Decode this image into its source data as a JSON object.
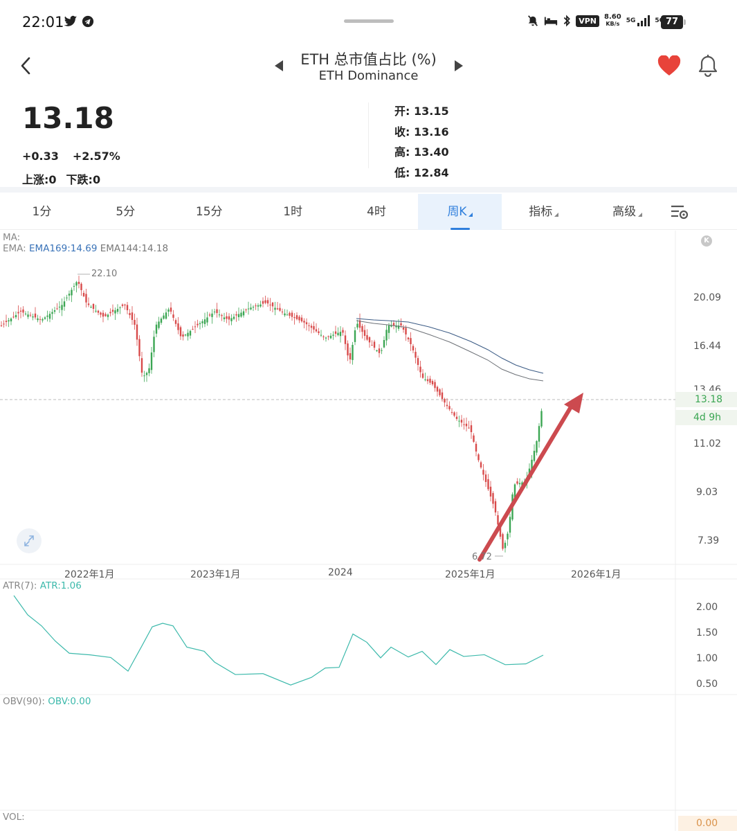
{
  "status_bar": {
    "time": "22:01",
    "net_speed_value": "8.60",
    "net_speed_unit": "KB/s",
    "vpn": "VPN",
    "sim1": "5G",
    "sim2": "5G",
    "battery": "77"
  },
  "header": {
    "title": "ETH 总市值占比 (%)",
    "subtitle": "ETH Dominance"
  },
  "quote": {
    "price": "13.18",
    "change": "+0.33",
    "change_pct": "+2.57%",
    "up_count": "上涨:0",
    "down_count": "下跌:0",
    "open_label": "开:",
    "open": "13.15",
    "close_label": "收:",
    "close": "13.16",
    "high_label": "高:",
    "high": "13.40",
    "low_label": "低:",
    "low": "12.84"
  },
  "tabs": [
    {
      "label": "1分"
    },
    {
      "label": "5分"
    },
    {
      "label": "15分"
    },
    {
      "label": "1时"
    },
    {
      "label": "4时"
    },
    {
      "label": "周K"
    },
    {
      "label": "指标"
    },
    {
      "label": "高级"
    }
  ],
  "indicators": {
    "ma_label": "MA:",
    "ema_label": "EMA:",
    "ema169": "EMA169:14.69",
    "ema144": "EMA144:14.18",
    "atr_label": "ATR(7):",
    "atr_value": "ATR:1.06",
    "obv_label": "OBV(90):",
    "obv_value": "OBV:0.00",
    "vol_label": "VOL:",
    "vol_value": "0.00",
    "k_badge": "K"
  },
  "main_chart": {
    "y_ticks": [
      "20.09",
      "16.44",
      "11.02",
      "9.03",
      "7.39"
    ],
    "y_tick_cut": "13.46",
    "x_ticks": [
      "2022年1月",
      "2023年1月",
      "2024",
      "2025年1月",
      "2026年1月"
    ],
    "high_marker": "22.10",
    "low_marker": "6.72",
    "last_price": "13.18",
    "countdown": "4d 9h"
  },
  "atr_chart": {
    "y_ticks": [
      "2.00",
      "1.50",
      "1.00",
      "0.50"
    ]
  },
  "colors": {
    "up": "#3ba653",
    "down": "#d84a4a",
    "accent": "#2f7fdc",
    "arrow": "#cc4a4f",
    "atr_line": "#3cb9ab"
  }
}
